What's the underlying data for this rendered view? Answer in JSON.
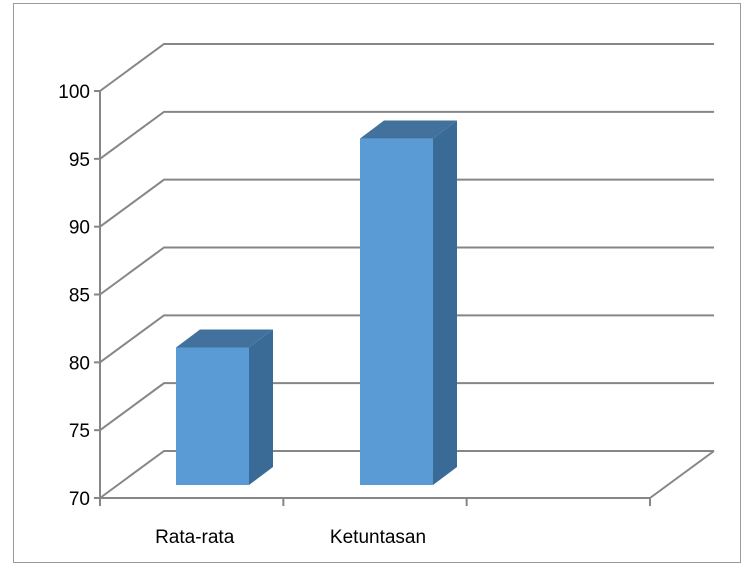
{
  "chart_data": {
    "type": "bar",
    "categories": [
      "Rata-rata",
      "Ketuntasan"
    ],
    "values": [
      81.5,
      96.9
    ],
    "title": "",
    "xlabel": "",
    "ylabel": "",
    "ylim": [
      70,
      100
    ],
    "yticks": [
      "70",
      "75",
      "80",
      "85",
      "90",
      "95",
      "100"
    ],
    "grid": true,
    "legend": "none",
    "style": "3d-column",
    "colors": {
      "bar_front": "#5b9bd5",
      "bar_side": "#3a6a96",
      "bar_top": "#41719c",
      "gridline": "#868686"
    }
  }
}
